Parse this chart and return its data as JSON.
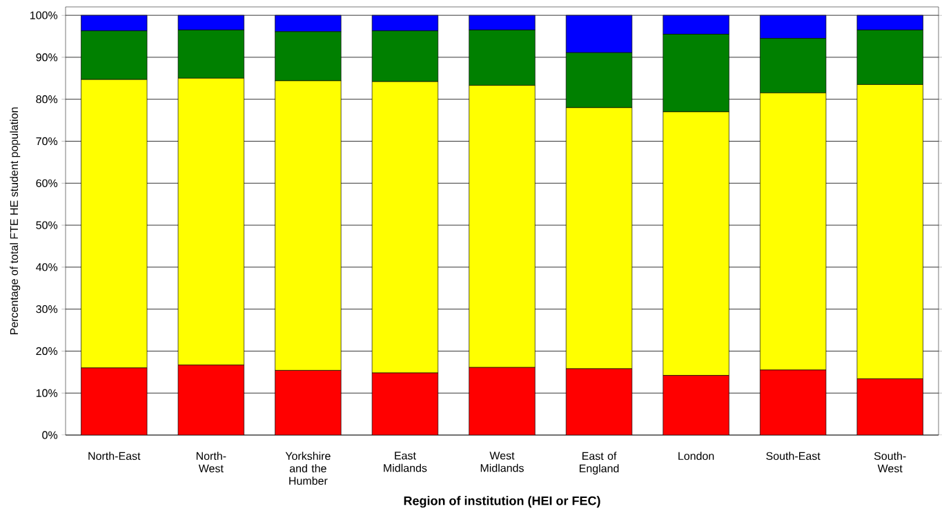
{
  "chart_data": {
    "type": "bar",
    "stacked": true,
    "xlabel": "Region of institution (HEI or FEC)",
    "ylabel": "Percentage of total FTE HE student population",
    "categories": [
      "North-East",
      "North-West",
      "Yorkshire and the Humber",
      "East Midlands",
      "West Midlands",
      "East of England",
      "London",
      "South-East",
      "South-West"
    ],
    "series": [
      {
        "color": "#ff0000",
        "values": [
          16.0,
          16.7,
          15.4,
          14.8,
          16.1,
          15.8,
          14.2,
          15.5,
          13.4
        ]
      },
      {
        "color": "#ffff00",
        "values": [
          68.7,
          68.3,
          69.0,
          69.4,
          67.2,
          62.2,
          62.8,
          66.0,
          70.1
        ]
      },
      {
        "color": "#008000",
        "values": [
          11.6,
          11.5,
          11.7,
          12.1,
          13.2,
          13.1,
          18.5,
          13.0,
          13.0
        ]
      },
      {
        "color": "#0000ff",
        "values": [
          3.7,
          3.5,
          3.9,
          3.7,
          3.5,
          8.9,
          4.5,
          5.5,
          3.5
        ]
      }
    ],
    "ylim": [
      0,
      102
    ],
    "yticks": [
      {
        "value": 0,
        "label": "0%"
      },
      {
        "value": 10,
        "label": "10%"
      },
      {
        "value": 20,
        "label": "20%"
      },
      {
        "value": 30,
        "label": "30%"
      },
      {
        "value": 40,
        "label": "40%"
      },
      {
        "value": 50,
        "label": "50%"
      },
      {
        "value": 60,
        "label": "60%"
      },
      {
        "value": 70,
        "label": "70%"
      },
      {
        "value": 80,
        "label": "80%"
      },
      {
        "value": 90,
        "label": "90%"
      },
      {
        "value": 100,
        "label": "100%"
      }
    ],
    "grid": "y"
  }
}
